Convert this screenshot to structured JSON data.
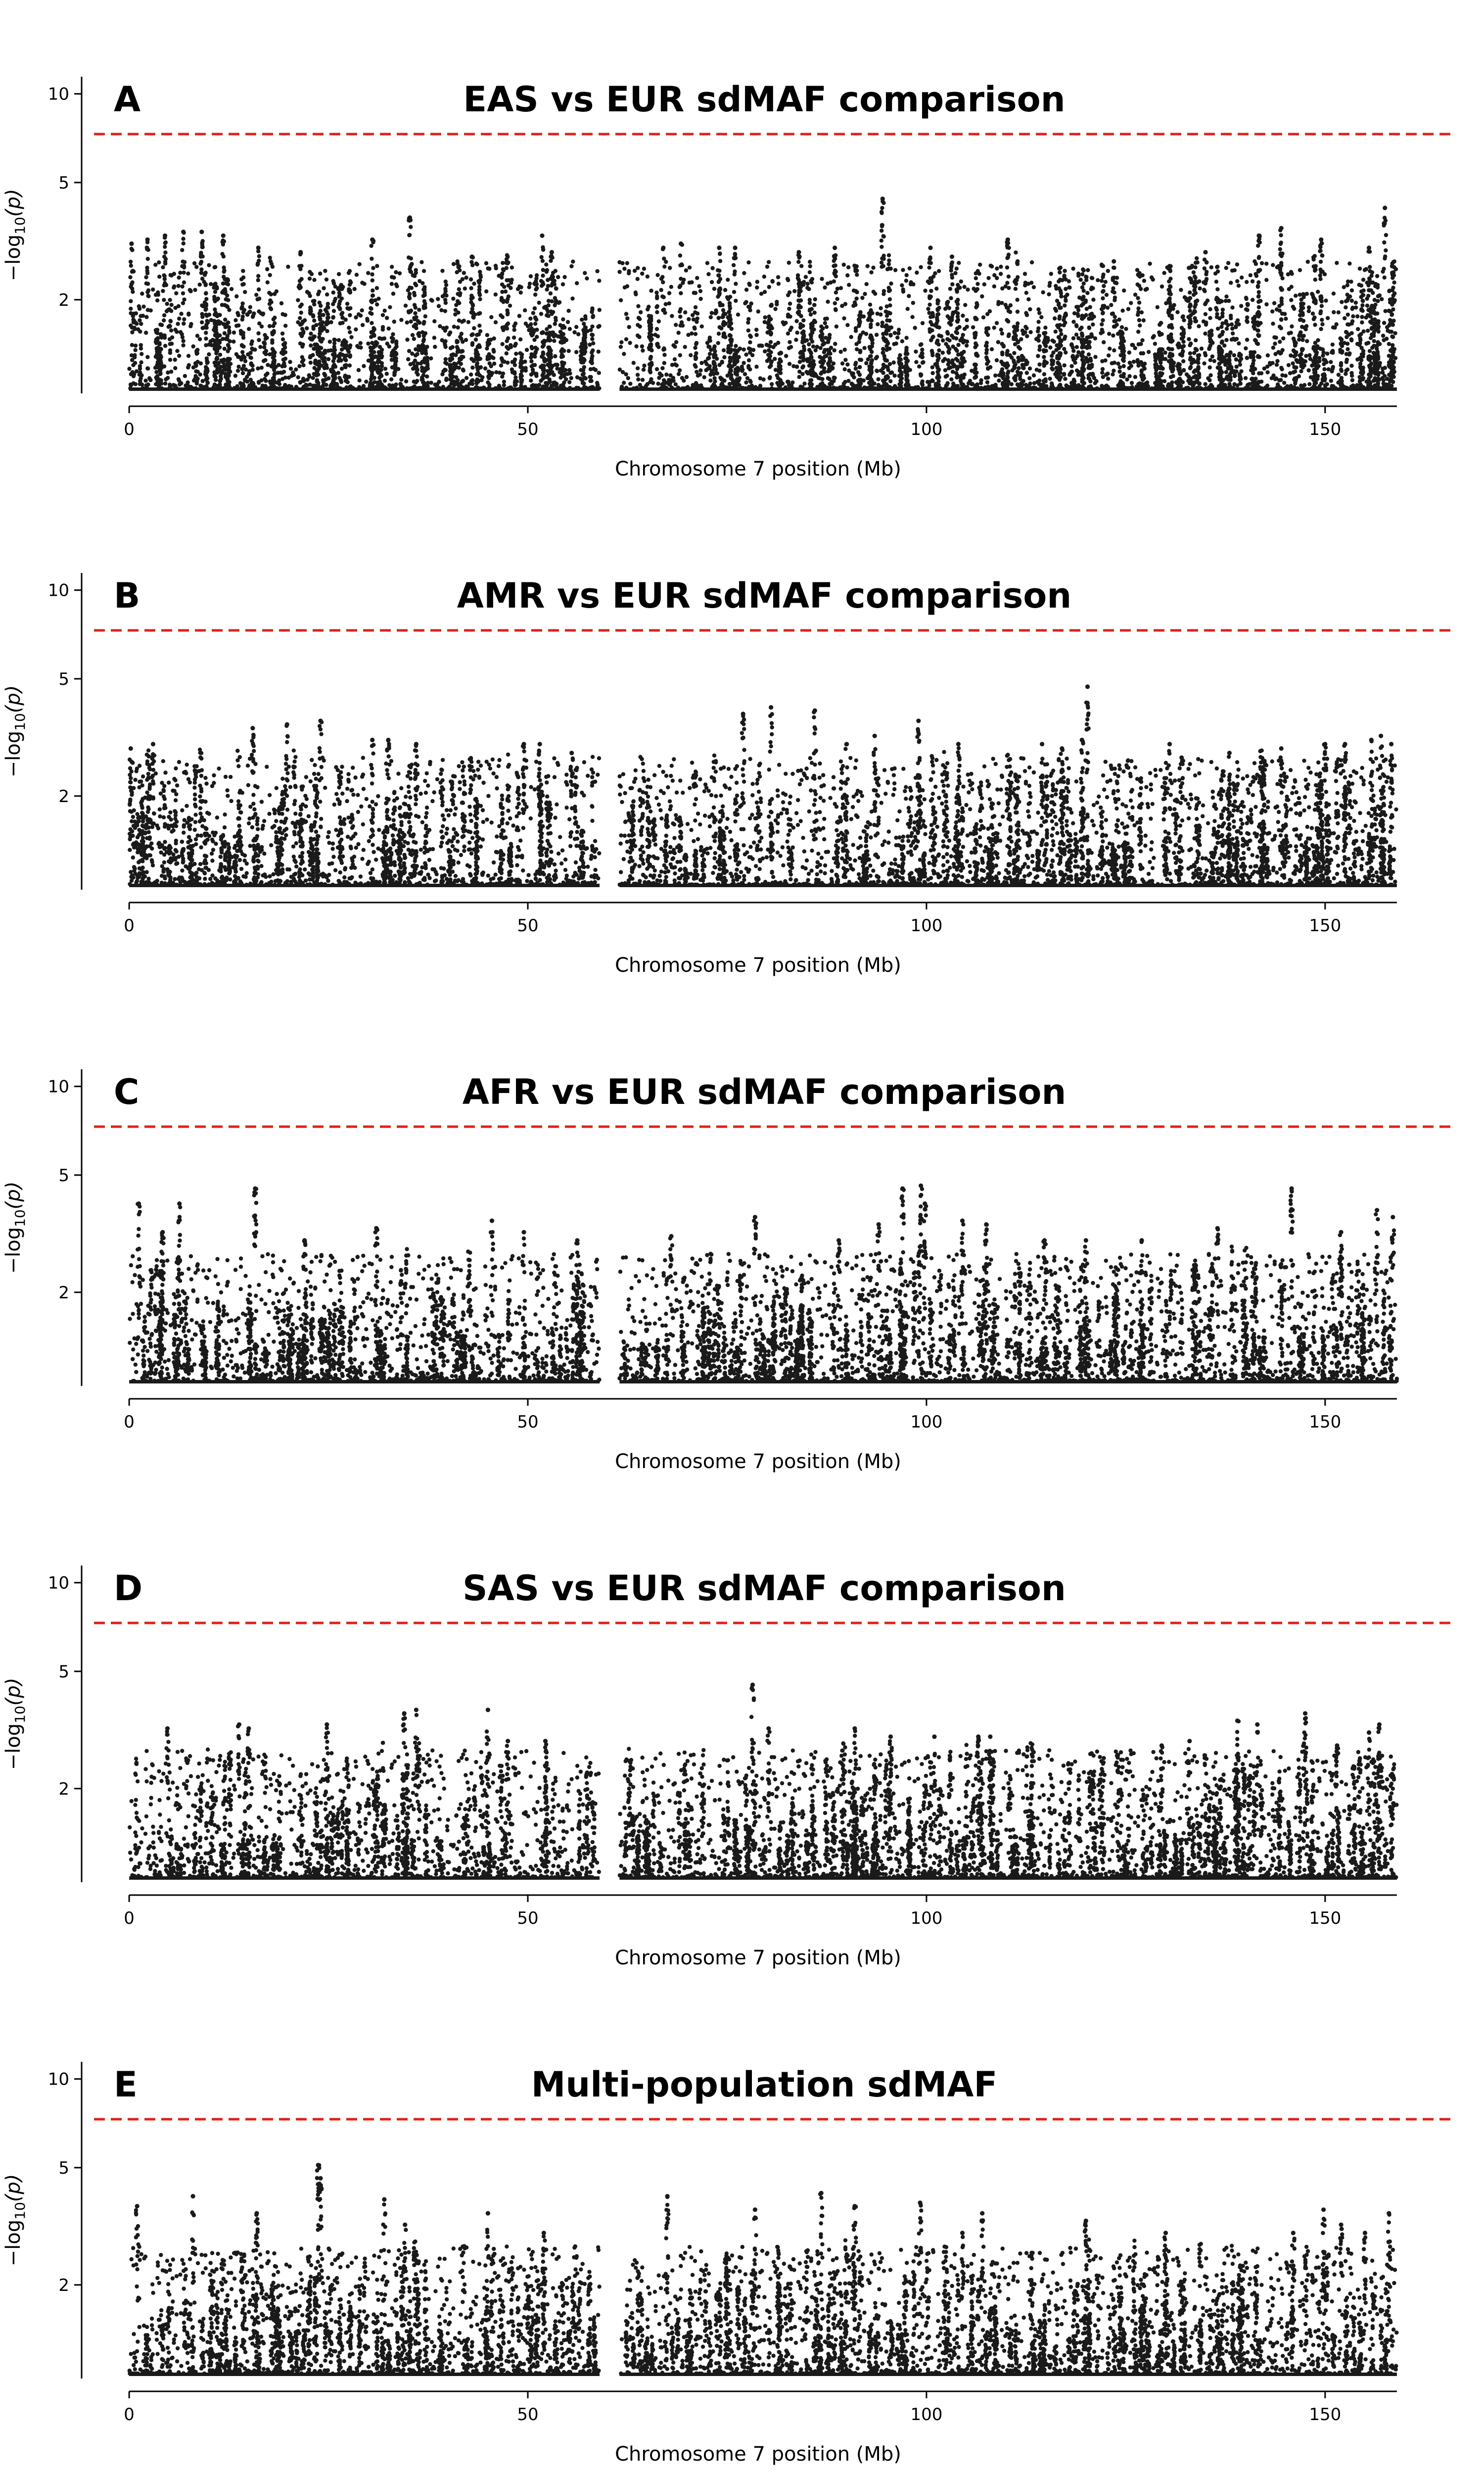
{
  "figure": {
    "background": "#ffffff",
    "point_color": "#1a1a1a",
    "threshold_color": "#e0201b"
  },
  "chart_data": [
    {
      "type": "scatter",
      "panel": "A",
      "title": "EAS vs EUR sdMAF comparison",
      "xlabel": "Chromosome 7 position (Mb)",
      "ylabel": "−log10(p)",
      "xticks": [
        0,
        50,
        100,
        150
      ],
      "yticks": [
        2,
        5,
        10
      ],
      "xlim": [
        -1,
        160
      ],
      "ylim": [
        1,
        11
      ],
      "y_scale": "log",
      "threshold": 7.3,
      "threshold_style": "dashed",
      "centromere_gap": [
        59.0,
        61.5
      ],
      "series": [
        {
          "values_summary": "dense points ~ -log10(p) 1 to 3.5 across chromosome",
          "peaks": [
            [
              0.3,
              3.1
            ],
            [
              2.3,
              3.2
            ],
            [
              4.5,
              3.3
            ],
            [
              6.8,
              3.4
            ],
            [
              9.1,
              3.4
            ],
            [
              11.8,
              3.3
            ],
            [
              16.2,
              3.0
            ],
            [
              21.5,
              2.9
            ],
            [
              30.5,
              3.2
            ],
            [
              35.2,
              3.8
            ],
            [
              43.0,
              2.8
            ],
            [
              51.8,
              3.3
            ],
            [
              53.0,
              2.9
            ],
            [
              67.0,
              3.0
            ],
            [
              69.2,
              3.1
            ],
            [
              74.0,
              3.0
            ],
            [
              76.0,
              3.0
            ],
            [
              84.0,
              2.9
            ],
            [
              88.5,
              3.0
            ],
            [
              94.5,
              4.4
            ],
            [
              100.5,
              3.0
            ],
            [
              103.2,
              2.8
            ],
            [
              110.2,
              3.2
            ],
            [
              123.5,
              2.7
            ],
            [
              130.5,
              2.6
            ],
            [
              135.0,
              2.9
            ],
            [
              141.7,
              3.3
            ],
            [
              144.5,
              3.5
            ],
            [
              149.5,
              3.2
            ],
            [
              155.5,
              3.0
            ],
            [
              157.5,
              4.1
            ]
          ]
        }
      ]
    },
    {
      "type": "scatter",
      "panel": "B",
      "title": "AMR vs EUR sdMAF comparison",
      "xlabel": "Chromosome 7 position (Mb)",
      "ylabel": "−log10(p)",
      "xticks": [
        0,
        50,
        100,
        150
      ],
      "yticks": [
        2,
        5,
        10
      ],
      "xlim": [
        -1,
        160
      ],
      "ylim": [
        1,
        11
      ],
      "y_scale": "log",
      "threshold": 7.3,
      "threshold_style": "dashed",
      "centromere_gap": [
        59.0,
        61.5
      ],
      "series": [
        {
          "values_summary": "dense points ~ -log10(p) 1 to 3.5 across chromosome",
          "peaks": [
            [
              0.2,
              2.9
            ],
            [
              3.0,
              3.0
            ],
            [
              15.5,
              3.4
            ],
            [
              19.8,
              3.5
            ],
            [
              24.0,
              3.6
            ],
            [
              30.5,
              3.1
            ],
            [
              32.5,
              3.1
            ],
            [
              36.0,
              3.0
            ],
            [
              49.5,
              3.0
            ],
            [
              51.5,
              3.0
            ],
            [
              55.5,
              2.8
            ],
            [
              77.0,
              3.8
            ],
            [
              80.5,
              4.0
            ],
            [
              86.0,
              3.9
            ],
            [
              90.0,
              3.0
            ],
            [
              93.5,
              3.2
            ],
            [
              99.0,
              3.6
            ],
            [
              104.0,
              3.0
            ],
            [
              114.5,
              3.0
            ],
            [
              117.0,
              2.9
            ],
            [
              119.5,
              3.1
            ],
            [
              120.2,
              4.7
            ],
            [
              130.5,
              3.0
            ],
            [
              132.0,
              2.7
            ],
            [
              138.0,
              2.8
            ],
            [
              144.5,
              2.9
            ],
            [
              150.0,
              3.0
            ],
            [
              152.5,
              3.0
            ],
            [
              155.8,
              3.1
            ],
            [
              157.0,
              3.2
            ],
            [
              158.3,
              3.0
            ]
          ]
        }
      ]
    },
    {
      "type": "scatter",
      "panel": "C",
      "title": "AFR vs EUR sdMAF comparison",
      "xlabel": "Chromosome 7 position (Mb)",
      "ylabel": "−log10(p)",
      "xticks": [
        0,
        50,
        100,
        150
      ],
      "yticks": [
        2,
        5,
        10
      ],
      "xlim": [
        -1,
        160
      ],
      "ylim": [
        1,
        11
      ],
      "y_scale": "log",
      "threshold": 7.3,
      "threshold_style": "dashed",
      "centromere_gap": [
        59.0,
        61.5
      ],
      "series": [
        {
          "values_summary": "dense points ~ -log10(p) 1 to 3.5 across chromosome",
          "peaks": [
            [
              1.2,
              4.0
            ],
            [
              4.2,
              3.2
            ],
            [
              6.3,
              4.0
            ],
            [
              15.8,
              4.5
            ],
            [
              22.0,
              3.0
            ],
            [
              31.0,
              3.3
            ],
            [
              45.5,
              3.5
            ],
            [
              49.5,
              3.2
            ],
            [
              56.2,
              3.0
            ],
            [
              68.0,
              3.1
            ],
            [
              78.5,
              3.6
            ],
            [
              89.0,
              3.0
            ],
            [
              94.0,
              3.4
            ],
            [
              97.0,
              4.5
            ],
            [
              99.3,
              4.6
            ],
            [
              99.8,
              4.0
            ],
            [
              104.5,
              3.5
            ],
            [
              107.5,
              3.4
            ],
            [
              114.8,
              3.0
            ],
            [
              120.0,
              3.0
            ],
            [
              127.0,
              3.0
            ],
            [
              136.5,
              3.3
            ],
            [
              145.8,
              4.5
            ],
            [
              152.0,
              3.2
            ],
            [
              156.5,
              3.8
            ],
            [
              158.5,
              3.6
            ]
          ]
        }
      ]
    },
    {
      "type": "scatter",
      "panel": "D",
      "title": "SAS vs EUR sdMAF comparison",
      "xlabel": "Chromosome 7 position (Mb)",
      "ylabel": "−log10(p)",
      "xticks": [
        0,
        50,
        100,
        150
      ],
      "yticks": [
        2,
        5,
        10
      ],
      "xlim": [
        -1,
        160
      ],
      "ylim": [
        1,
        11
      ],
      "y_scale": "log",
      "threshold": 7.3,
      "threshold_style": "dashed",
      "centromere_gap": [
        59.0,
        61.5
      ],
      "series": [
        {
          "values_summary": "dense points ~ -log10(p) 1 to 3.5 across chromosome",
          "peaks": [
            [
              4.8,
              3.2
            ],
            [
              13.8,
              3.3
            ],
            [
              15.0,
              3.2
            ],
            [
              24.8,
              3.3
            ],
            [
              34.5,
              3.6
            ],
            [
              36.0,
              3.7
            ],
            [
              45.0,
              3.7
            ],
            [
              47.5,
              2.9
            ],
            [
              52.2,
              2.9
            ],
            [
              78.2,
              4.5
            ],
            [
              80.2,
              3.2
            ],
            [
              91.0,
              3.2
            ],
            [
              95.5,
              3.0
            ],
            [
              101.0,
              3.0
            ],
            [
              106.5,
              3.0
            ],
            [
              108.0,
              3.0
            ],
            [
              124.0,
              2.6
            ],
            [
              129.5,
              2.8
            ],
            [
              133.0,
              2.9
            ],
            [
              139.0,
              3.4
            ],
            [
              141.5,
              3.3
            ],
            [
              147.5,
              3.6
            ],
            [
              151.5,
              2.8
            ],
            [
              155.5,
              3.1
            ],
            [
              156.8,
              3.3
            ]
          ]
        }
      ]
    },
    {
      "type": "scatter",
      "panel": "E",
      "title": "Multi-population sdMAF",
      "xlabel": "Chromosome 7 position (Mb)",
      "ylabel": "−log10(p)",
      "xticks": [
        0,
        50,
        100,
        150
      ],
      "yticks": [
        2,
        5,
        10
      ],
      "xlim": [
        -1,
        160
      ],
      "ylim": [
        1,
        11
      ],
      "y_scale": "log",
      "threshold": 7.3,
      "threshold_style": "dashed",
      "centromere_gap": [
        59.0,
        61.5
      ],
      "series": [
        {
          "values_summary": "dense points ~ -log10(p) 1 to 3.5 across chromosome",
          "peaks": [
            [
              1.0,
              3.7
            ],
            [
              8.0,
              4.0
            ],
            [
              16.0,
              3.5
            ],
            [
              23.7,
              5.1
            ],
            [
              24.0,
              4.6
            ],
            [
              32.0,
              3.9
            ],
            [
              34.6,
              3.2
            ],
            [
              45.0,
              3.5
            ],
            [
              52.0,
              3.0
            ],
            [
              67.5,
              4.0
            ],
            [
              78.5,
              3.6
            ],
            [
              86.8,
              4.1
            ],
            [
              91.0,
              3.7
            ],
            [
              99.2,
              3.8
            ],
            [
              104.5,
              3.0
            ],
            [
              107.0,
              3.5
            ],
            [
              120.0,
              3.3
            ],
            [
              130.0,
              3.0
            ],
            [
              146.0,
              3.0
            ],
            [
              149.8,
              3.6
            ],
            [
              152.0,
              3.2
            ],
            [
              155.0,
              3.0
            ],
            [
              158.0,
              3.5
            ]
          ]
        }
      ]
    }
  ]
}
